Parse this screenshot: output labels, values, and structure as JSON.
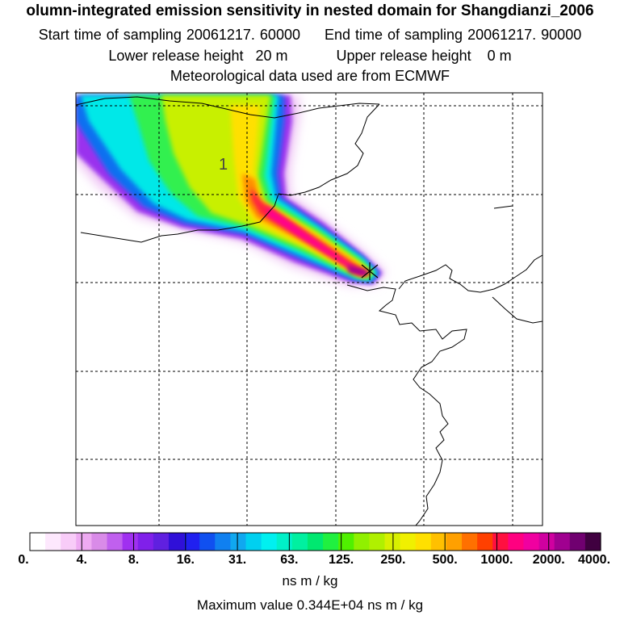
{
  "header": {
    "title": "olumn-integrated emission sensitivity in nested domain for Shangdianzi_2006",
    "start_sampling": "Start time of sampling 20061217. 60000",
    "end_sampling": "End time of sampling 20061217. 90000",
    "lower_release": "Lower release height   20 m",
    "upper_release": "Upper release height    0 m",
    "met_data": "Meteorological data used are from ECMWF"
  },
  "map": {
    "marker_label": "1"
  },
  "colorbar": {
    "labels": [
      "0.",
      "4.",
      "8.",
      "16.",
      "31.",
      "63.",
      "125.",
      "250.",
      "500.",
      "1000.",
      "2000.",
      "4000."
    ],
    "unit": "ns m / kg",
    "max_value_text": "Maximum value  0.344E+04 ns m / kg",
    "colors": [
      "#ffffff",
      "#fde8fd",
      "#f8ccf8",
      "#eeaaf2",
      "#d98be8",
      "#c060ee",
      "#a030f0",
      "#8020ea",
      "#6020e0",
      "#3010d8",
      "#2020f0",
      "#1050f0",
      "#1080f0",
      "#10a8f0",
      "#00d0f0",
      "#00f0f0",
      "#00f0c8",
      "#00f0a0",
      "#00e870",
      "#20f040",
      "#50f000",
      "#90f000",
      "#b0f000",
      "#d8f000",
      "#f0f000",
      "#ffe000",
      "#ffc000",
      "#ffa000",
      "#ff7000",
      "#ff4000",
      "#ff1040",
      "#ff0080",
      "#f000a0",
      "#d000a0",
      "#a00090",
      "#700070",
      "#400040"
    ]
  }
}
